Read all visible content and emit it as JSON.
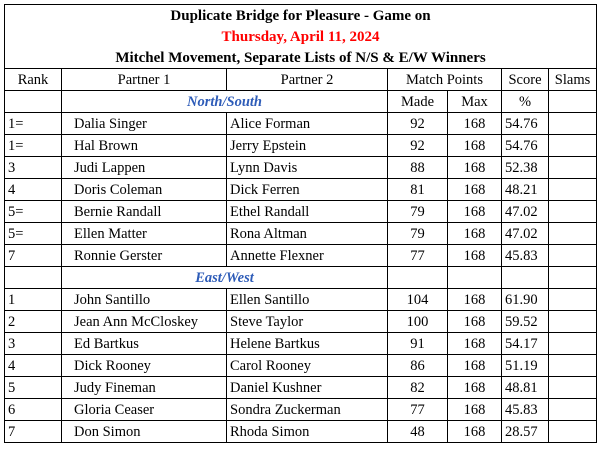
{
  "title": {
    "line1": "Duplicate Bridge for Pleasure - Game on",
    "line2": "Thursday, April 11, 2024",
    "line3": "Mitchel Movement, Separate Lists of N/S & E/W Winners"
  },
  "columns": {
    "rank": "Rank",
    "partner1": "Partner 1",
    "partner2": "Partner 2",
    "match_points": "Match Points",
    "score": "Score",
    "slams": "Slams",
    "made": "Made",
    "max": "Max",
    "pct": "%"
  },
  "north_south": {
    "label": "North/South",
    "rows": [
      {
        "rank": "1=",
        "p1": "Dalia Singer",
        "p2": "Alice Forman",
        "made": "92",
        "max": "168",
        "score": "54.76",
        "slams": ""
      },
      {
        "rank": "1=",
        "p1": "Hal Brown",
        "p2": "Jerry Epstein",
        "made": "92",
        "max": "168",
        "score": "54.76",
        "slams": ""
      },
      {
        "rank": "3",
        "p1": "Judi Lappen",
        "p2": "Lynn Davis",
        "made": "88",
        "max": "168",
        "score": "52.38",
        "slams": ""
      },
      {
        "rank": "4",
        "p1": "Doris Coleman",
        "p2": "Dick Ferren",
        "made": "81",
        "max": "168",
        "score": "48.21",
        "slams": ""
      },
      {
        "rank": "5=",
        "p1": "Bernie Randall",
        "p2": "Ethel Randall",
        "made": "79",
        "max": "168",
        "score": "47.02",
        "slams": ""
      },
      {
        "rank": "5=",
        "p1": "Ellen Matter",
        "p2": "Rona Altman",
        "made": "79",
        "max": "168",
        "score": "47.02",
        "slams": ""
      },
      {
        "rank": "7",
        "p1": "Ronnie Gerster",
        "p2": "Annette Flexner",
        "made": "77",
        "max": "168",
        "score": "45.83",
        "slams": ""
      }
    ]
  },
  "east_west": {
    "label": "East/West",
    "rows": [
      {
        "rank": "1",
        "p1": "John Santillo",
        "p2": "Ellen Santillo",
        "made": "104",
        "max": "168",
        "score": "61.90",
        "slams": ""
      },
      {
        "rank": "2",
        "p1": "Jean Ann McCloskey",
        "p2": "Steve Taylor",
        "made": "100",
        "max": "168",
        "score": "59.52",
        "slams": ""
      },
      {
        "rank": "3",
        "p1": "Ed Bartkus",
        "p2": "Helene Bartkus",
        "made": "91",
        "max": "168",
        "score": "54.17",
        "slams": ""
      },
      {
        "rank": "4",
        "p1": "Dick Rooney",
        "p2": "Carol Rooney",
        "made": "86",
        "max": "168",
        "score": "51.19",
        "slams": ""
      },
      {
        "rank": "5",
        "p1": "Judy Fineman",
        "p2": "Daniel Kushner",
        "made": "82",
        "max": "168",
        "score": "48.81",
        "slams": ""
      },
      {
        "rank": "6",
        "p1": "Gloria Ceaser",
        "p2": "Sondra Zuckerman",
        "made": "77",
        "max": "168",
        "score": "45.83",
        "slams": ""
      },
      {
        "rank": "7",
        "p1": "Don Simon",
        "p2": "Rhoda Simon",
        "made": "48",
        "max": "168",
        "score": "28.57",
        "slams": ""
      }
    ]
  },
  "colors": {
    "date": "#ff0000",
    "section_label": "#2e5cb8"
  }
}
